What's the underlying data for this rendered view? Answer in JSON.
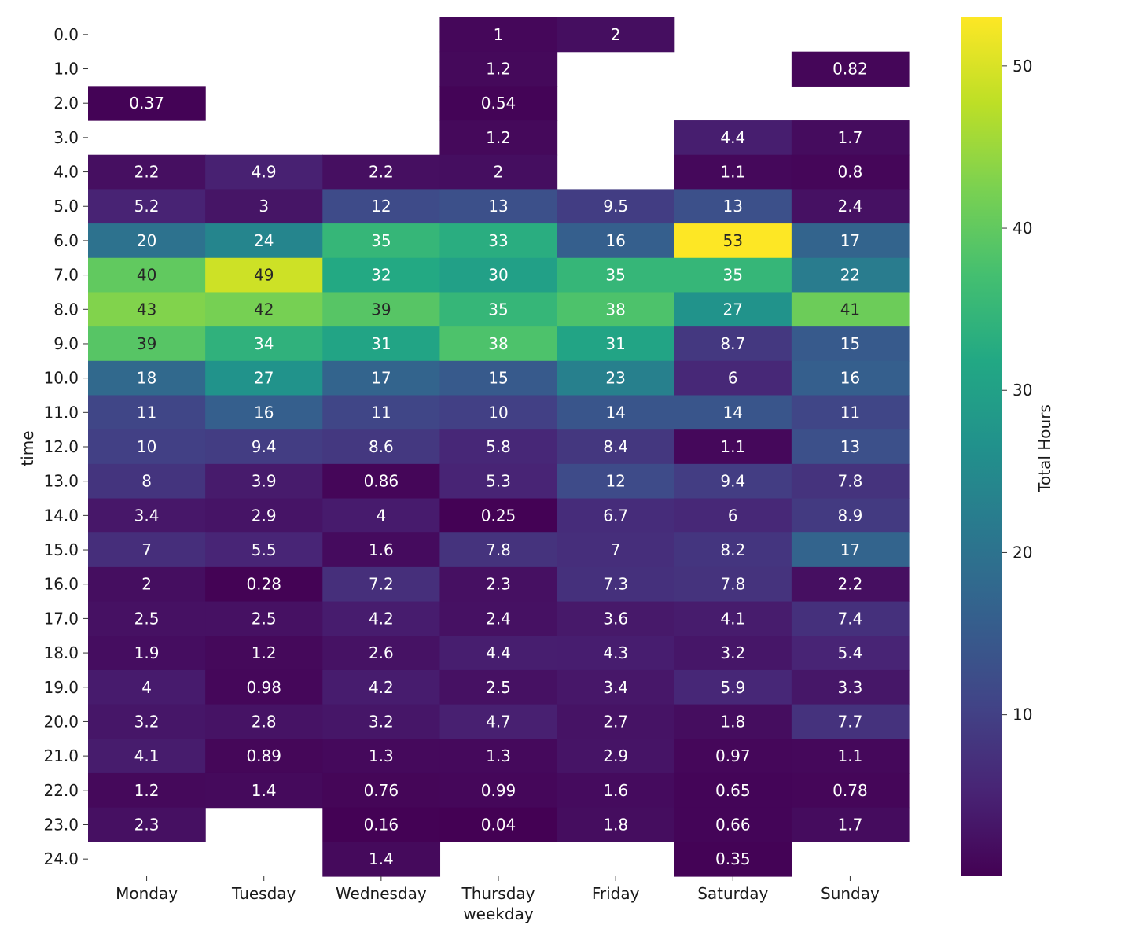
{
  "chart_data": {
    "type": "heatmap",
    "xlabel": "weekday",
    "ylabel": "time",
    "x_categories": [
      "Monday",
      "Tuesday",
      "Wednesday",
      "Thursday",
      "Friday",
      "Saturday",
      "Sunday"
    ],
    "y_categories": [
      "0.0",
      "1.0",
      "2.0",
      "3.0",
      "4.0",
      "5.0",
      "6.0",
      "7.0",
      "8.0",
      "9.0",
      "10.0",
      "11.0",
      "12.0",
      "13.0",
      "14.0",
      "15.0",
      "16.0",
      "17.0",
      "18.0",
      "19.0",
      "20.0",
      "21.0",
      "22.0",
      "23.0",
      "24.0"
    ],
    "values": [
      [
        null,
        null,
        null,
        1,
        2,
        null,
        null
      ],
      [
        null,
        null,
        null,
        1.2,
        null,
        null,
        0.82
      ],
      [
        0.37,
        null,
        null,
        0.54,
        null,
        null,
        null
      ],
      [
        null,
        null,
        null,
        1.2,
        null,
        4.4,
        1.7
      ],
      [
        2.2,
        4.9,
        2.2,
        2,
        null,
        1.1,
        0.8
      ],
      [
        5.2,
        3,
        12,
        13,
        9.5,
        13,
        2.4
      ],
      [
        20,
        24,
        35,
        33,
        16,
        53,
        17
      ],
      [
        40,
        49,
        32,
        30,
        35,
        35,
        22
      ],
      [
        43,
        42,
        39,
        35,
        38,
        27,
        41
      ],
      [
        39,
        34,
        31,
        38,
        31,
        8.7,
        15
      ],
      [
        18,
        27,
        17,
        15,
        23,
        6,
        16
      ],
      [
        11,
        16,
        11,
        10,
        14,
        14,
        11
      ],
      [
        10,
        9.4,
        8.6,
        5.8,
        8.4,
        1.1,
        13
      ],
      [
        8,
        3.9,
        0.86,
        5.3,
        12,
        9.4,
        7.8
      ],
      [
        3.4,
        2.9,
        4,
        0.25,
        6.7,
        6,
        8.9
      ],
      [
        7,
        5.5,
        1.6,
        7.8,
        7,
        8.2,
        17
      ],
      [
        2,
        0.28,
        7.2,
        2.3,
        7.3,
        7.8,
        2.2
      ],
      [
        2.5,
        2.5,
        4.2,
        2.4,
        3.6,
        4.1,
        7.4
      ],
      [
        1.9,
        1.2,
        2.6,
        4.4,
        4.3,
        3.2,
        5.4
      ],
      [
        4,
        0.98,
        4.2,
        2.5,
        3.4,
        5.9,
        3.3
      ],
      [
        3.2,
        2.8,
        3.2,
        4.7,
        2.7,
        1.8,
        7.7
      ],
      [
        4.1,
        0.89,
        1.3,
        1.3,
        2.9,
        0.97,
        1.1
      ],
      [
        1.2,
        1.4,
        0.76,
        0.99,
        1.6,
        0.65,
        0.78
      ],
      [
        2.3,
        null,
        0.16,
        0.04,
        1.8,
        0.66,
        1.7
      ],
      [
        null,
        null,
        1.4,
        null,
        null,
        0.35,
        null
      ]
    ],
    "colormap": "viridis",
    "colorbar": {
      "label": "Total Hours",
      "range": [
        0.04,
        53
      ],
      "ticks": [
        "10",
        "20",
        "30",
        "40",
        "50"
      ]
    },
    "annotations": true,
    "grid": false,
    "legend": "colorbar-right"
  }
}
